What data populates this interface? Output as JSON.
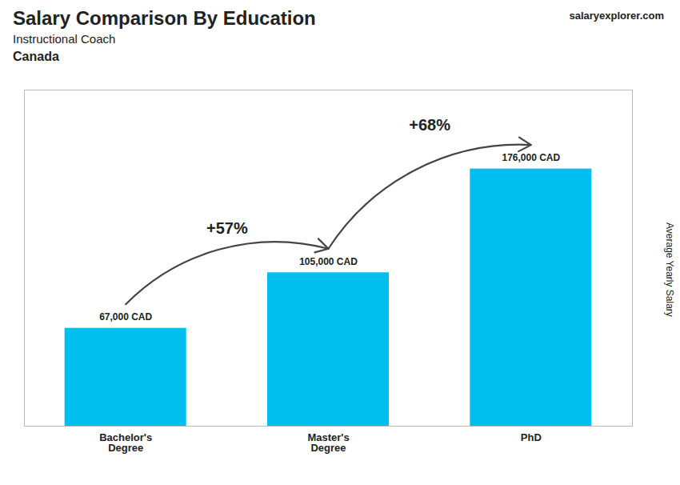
{
  "chart_data": {
    "type": "bar",
    "title": "Salary Comparison By Education",
    "subtitle": "Instructional Coach",
    "ylabel": "Average Yearly Salary",
    "categories": [
      "Bachelor's\nDegree",
      "Master's\nDegree",
      "PhD"
    ],
    "values": [
      67000,
      105000,
      176000
    ],
    "value_labels": [
      "67,000 CAD",
      "105,000 CAD",
      "176,000 CAD"
    ],
    "data_labels": true,
    "color": "#00BFEE",
    "ylim": [
      0,
      230000
    ],
    "tick_labels": "x",
    "grid": false,
    "annotations": [
      {
        "text": "Canada"
      },
      {
        "text": "salaryexplorer.com"
      },
      {
        "text": "+57%",
        "from": "Bachelor's\nDegree",
        "to": "Master's\nDegree"
      },
      {
        "text": "+68%",
        "from": "Master's\nDegree",
        "to": "PhD"
      }
    ]
  }
}
